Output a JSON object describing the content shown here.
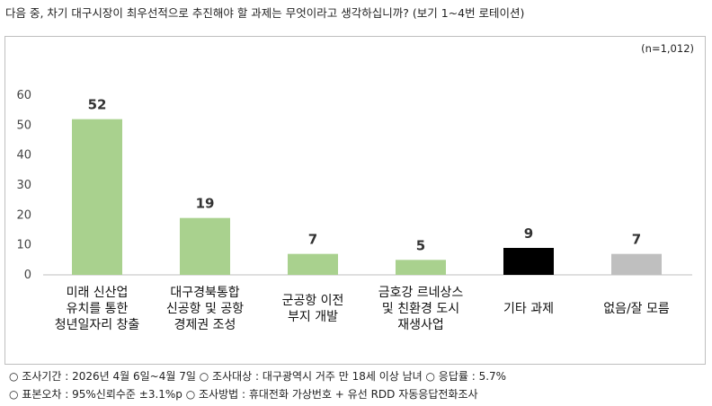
{
  "question": "다음 중, 차기 대구시장이 최우선적으로 추진해야 할 과제는 무엇이라고 생각하십니까? (보기 1~4번 로테이션)",
  "sample_size": "(n=1,012)",
  "footer": {
    "line1": "○ 조사기간 : 2026년 4월 6일~4월 7일 ○ 조사대상 : 대구광역시 거주 만 18세 이상 남녀 ○ 응답률 : 5.7%",
    "line2": "○ 표본오차 : 95%신뢰수준 ±3.1%p ○ 조사방법 : 휴대전화 가상번호 + 유선 RDD 자동응답전화조사"
  },
  "chart_data": {
    "type": "bar",
    "ylim": [
      0,
      60
    ],
    "yticks": [
      0,
      10,
      20,
      30,
      40,
      50,
      60
    ],
    "grid": false,
    "categories": [
      [
        "미래 신산업",
        "유치를 통한",
        "청년일자리 창출"
      ],
      [
        "대구경북통합",
        "신공항 및 공항",
        "경제권 조성"
      ],
      [
        "군공항 이전",
        "부지 개발"
      ],
      [
        "금호강 르네상스",
        "및 친환경 도시",
        "재생사업"
      ],
      [
        "기타 과제"
      ],
      [
        "없음/잘 모름"
      ]
    ],
    "values": [
      52,
      19,
      7,
      5,
      9,
      7
    ],
    "colors": [
      "#a9d18e",
      "#a9d18e",
      "#a9d18e",
      "#a9d18e",
      "#000000",
      "#bfbfbf"
    ]
  }
}
